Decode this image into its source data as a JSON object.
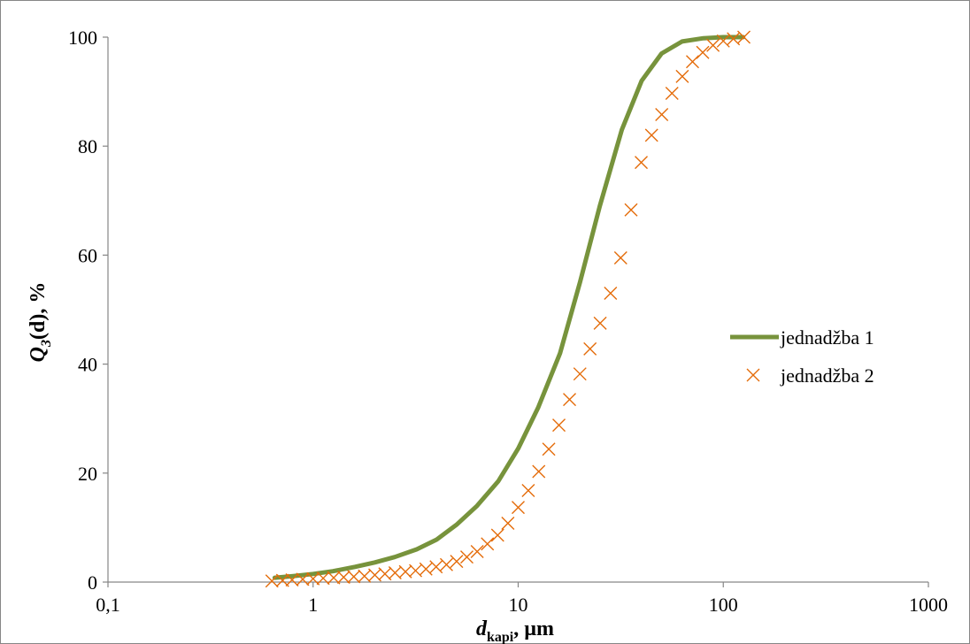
{
  "colors": {
    "series1": "#77933c",
    "series2": "#e46c0a",
    "axis": "#868686",
    "border": "#868686"
  },
  "chart_data": {
    "type": "line",
    "title": "",
    "xscale": "log",
    "xlim": [
      0.1,
      1000
    ],
    "ylim": [
      0,
      100
    ],
    "xticks": [
      0.1,
      1,
      10,
      100,
      1000
    ],
    "xtick_labels": [
      "0,1",
      "1",
      "10",
      "100",
      "1000"
    ],
    "yticks": [
      0,
      20,
      40,
      60,
      80,
      100
    ],
    "ytick_labels": [
      "0",
      "20",
      "40",
      "60",
      "80",
      "100"
    ],
    "xlabel": {
      "main": "d",
      "sub": "kapi",
      "rest": ", µm"
    },
    "ylabel": {
      "main": "Q",
      "sub": "3",
      "rest": "(d), %"
    },
    "grid": false,
    "legend_position": "right",
    "series": [
      {
        "name": "jednadžba 1",
        "style": "line",
        "x": [
          0.65,
          0.8,
          1,
          1.25,
          1.6,
          2,
          2.5,
          3.2,
          4,
          5,
          6.3,
          8,
          10,
          12.5,
          16,
          20,
          25,
          32,
          40,
          50,
          63,
          80,
          100,
          125
        ],
        "y": [
          0.8,
          1.1,
          1.5,
          2,
          2.8,
          3.6,
          4.6,
          6,
          7.8,
          10.5,
          14,
          18.5,
          24.5,
          32,
          42,
          55,
          69,
          83,
          92,
          97,
          99.2,
          99.8,
          100,
          100
        ]
      },
      {
        "name": "jednadžba 2",
        "style": "marker-x",
        "x": [
          0.63,
          0.71,
          0.79,
          0.89,
          1,
          1.12,
          1.26,
          1.41,
          1.58,
          1.78,
          2,
          2.24,
          2.51,
          2.82,
          3.16,
          3.55,
          3.98,
          4.47,
          5.01,
          5.62,
          6.31,
          7.08,
          7.94,
          8.91,
          10,
          11.2,
          12.6,
          14.1,
          15.8,
          17.8,
          20,
          22.4,
          25.1,
          28.2,
          31.6,
          35.5,
          39.8,
          44.7,
          50.1,
          56.2,
          63.1,
          70.8,
          79.4,
          89.1,
          100,
          112,
          126
        ],
        "y": [
          0.2,
          0.3,
          0.4,
          0.5,
          0.6,
          0.7,
          0.8,
          0.9,
          1,
          1.1,
          1.3,
          1.5,
          1.7,
          1.9,
          2.1,
          2.4,
          2.8,
          3.2,
          3.8,
          4.6,
          5.6,
          7,
          8.6,
          10.8,
          13.7,
          16.8,
          20.3,
          24.4,
          28.8,
          33.5,
          38.2,
          42.8,
          47.5,
          53,
          59.5,
          68.3,
          77,
          82,
          85.8,
          89.7,
          92.8,
          95.5,
          97.2,
          98.5,
          99.3,
          99.7,
          100
        ]
      }
    ]
  }
}
